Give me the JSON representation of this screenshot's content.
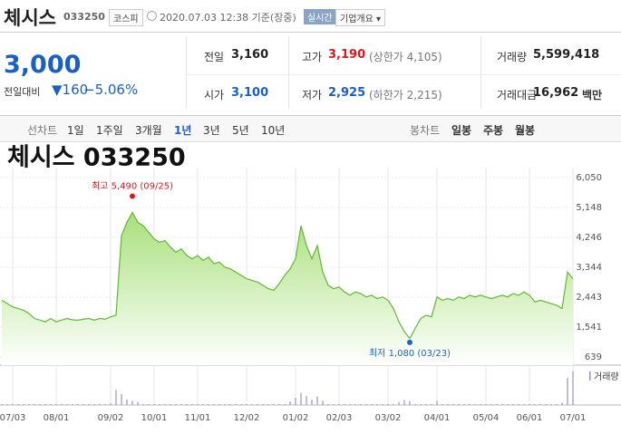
{
  "header": {
    "name": "체시스",
    "code": "033250",
    "market": "코스피",
    "timestamp": "2020.07.03 12:38 기준(장중)",
    "realtime": "실시간",
    "company_button": "기업개요"
  },
  "quote": {
    "price": "3,000",
    "change_label": "전일대비",
    "change": "160",
    "change_pct": "−5.06%"
  },
  "stats": [
    {
      "label": "전일",
      "value": "3,160"
    },
    {
      "label": "고가",
      "value": "3,190",
      "extra": "(상한가 4,105)"
    },
    {
      "label": "거래량",
      "value": "5,599,418"
    },
    {
      "label": "시가",
      "value": "3,100"
    },
    {
      "label": "저가",
      "value": "2,925",
      "extra": "(하한가 2,215)"
    },
    {
      "label": "거래대금",
      "value": "16,962",
      "unit": "백만"
    }
  ],
  "tabs": {
    "line_label": "선차트",
    "line_periods": [
      "1일",
      "1주일",
      "3개월",
      "1년",
      "3년",
      "5년",
      "10년"
    ],
    "active": 3,
    "candle_label": "봉차트",
    "candle_periods": [
      "일봉",
      "주봉",
      "월봉"
    ]
  },
  "chart_data": {
    "type": "line",
    "title": "체시스 033250",
    "color": "#62b834",
    "categories": [
      null,
      null,
      "07/03",
      null,
      null,
      null,
      null,
      null,
      null,
      null,
      "08/01",
      null,
      null,
      null,
      null,
      null,
      null,
      null,
      null,
      null,
      "09/02",
      null,
      null,
      null,
      null,
      null,
      null,
      null,
      "10/01",
      null,
      null,
      null,
      null,
      null,
      null,
      null,
      "11/01",
      null,
      null,
      null,
      null,
      null,
      null,
      null,
      null,
      "12/02",
      null,
      null,
      null,
      null,
      null,
      null,
      null,
      null,
      "01/02",
      null,
      null,
      null,
      null,
      null,
      null,
      null,
      "02/03",
      null,
      null,
      null,
      null,
      null,
      null,
      null,
      null,
      "03/02",
      null,
      null,
      null,
      null,
      null,
      null,
      null,
      null,
      "04/01",
      null,
      null,
      null,
      null,
      null,
      null,
      null,
      null,
      "05/04",
      null,
      null,
      null,
      null,
      null,
      null,
      null,
      "06/01",
      null,
      null,
      null,
      null,
      null,
      null,
      null,
      "07/01"
    ],
    "values": [
      2350,
      2250,
      2150,
      2100,
      2050,
      1950,
      1800,
      1750,
      1700,
      1800,
      1700,
      1750,
      1800,
      1760,
      1750,
      1780,
      1800,
      1750,
      1800,
      1780,
      1850,
      1900,
      4300,
      4700,
      5000,
      4700,
      4600,
      4400,
      4200,
      4100,
      4150,
      3950,
      3800,
      3900,
      3700,
      3600,
      3700,
      3550,
      3650,
      3450,
      3500,
      3350,
      3300,
      3200,
      3100,
      3000,
      2950,
      2900,
      2800,
      2700,
      2650,
      2850,
      3100,
      3300,
      3600,
      4600,
      4000,
      3600,
      4000,
      3200,
      2800,
      2700,
      2750,
      2600,
      2500,
      2600,
      2550,
      2450,
      2500,
      2400,
      2450,
      2350,
      2100,
      1700,
      1400,
      1200,
      1500,
      1800,
      1900,
      1850,
      2450,
      2350,
      2400,
      2350,
      2450,
      2400,
      2500,
      2450,
      2500,
      2450,
      2400,
      2450,
      2500,
      2450,
      2550,
      2500,
      2600,
      2500,
      2300,
      2350,
      2300,
      2250,
      2200,
      2100,
      3200,
      3000
    ],
    "ylim": [
      639,
      6050
    ],
    "yticks": [
      {
        "value": 639,
        "label": "639"
      },
      {
        "value": 1541,
        "label": "1,541"
      },
      {
        "value": 2443,
        "label": "2,443"
      },
      {
        "value": 3344,
        "label": "3,344"
      },
      {
        "value": 4246,
        "label": "4,246"
      },
      {
        "value": 5148,
        "label": "5,148"
      },
      {
        "value": 6050,
        "label": "6,050"
      }
    ],
    "high": {
      "label": "최고 5,490 (09/25)",
      "value": 5490,
      "color": "#e0161c"
    },
    "low": {
      "label": "최저 1,080 (03/23)",
      "value": 1080,
      "color": "#1a64c8"
    },
    "volume": {
      "label": "거래량",
      "color": "#9a8fc9",
      "ylim": [
        0,
        6000000
      ],
      "values": [
        150000,
        150000,
        150000,
        150000,
        150000,
        150000,
        150000,
        150000,
        150000,
        150000,
        150000,
        150000,
        150000,
        150000,
        150000,
        150000,
        150000,
        150000,
        150000,
        150000,
        300000,
        2500000,
        1800000,
        900000,
        700000,
        500000,
        150000,
        150000,
        150000,
        150000,
        150000,
        150000,
        150000,
        150000,
        150000,
        150000,
        150000,
        150000,
        150000,
        150000,
        150000,
        150000,
        150000,
        150000,
        150000,
        150000,
        150000,
        150000,
        150000,
        150000,
        150000,
        150000,
        150000,
        600000,
        1200000,
        2000000,
        1500000,
        900000,
        1400000,
        700000,
        150000,
        150000,
        150000,
        150000,
        150000,
        150000,
        150000,
        150000,
        150000,
        150000,
        150000,
        150000,
        150000,
        500000,
        800000,
        600000,
        150000,
        150000,
        150000,
        150000,
        700000,
        150000,
        150000,
        150000,
        150000,
        150000,
        150000,
        150000,
        150000,
        150000,
        150000,
        150000,
        150000,
        150000,
        150000,
        150000,
        150000,
        150000,
        150000,
        150000,
        150000,
        150000,
        150000,
        400000,
        4500000,
        5599418
      ]
    }
  }
}
